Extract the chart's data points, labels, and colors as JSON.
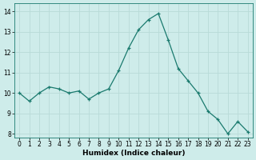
{
  "x": [
    0,
    1,
    2,
    3,
    4,
    5,
    6,
    7,
    8,
    9,
    10,
    11,
    12,
    13,
    14,
    15,
    16,
    17,
    18,
    19,
    20,
    21,
    22,
    23
  ],
  "y": [
    10.0,
    9.6,
    10.0,
    10.3,
    10.2,
    10.0,
    10.1,
    9.7,
    10.0,
    10.2,
    11.1,
    12.2,
    13.1,
    13.6,
    13.9,
    12.6,
    11.2,
    10.6,
    10.0,
    9.1,
    8.7,
    8.0,
    8.6,
    8.1
  ],
  "line_color": "#1a7a6e",
  "marker": "+",
  "bg_color": "#ceecea",
  "grid_color": "#b8dbd8",
  "xlabel": "Humidex (Indice chaleur)",
  "xlim": [
    -0.5,
    23.5
  ],
  "ylim": [
    7.8,
    14.4
  ],
  "yticks": [
    8,
    9,
    10,
    11,
    12,
    13,
    14
  ],
  "xticks": [
    0,
    1,
    2,
    3,
    4,
    5,
    6,
    7,
    8,
    9,
    10,
    11,
    12,
    13,
    14,
    15,
    16,
    17,
    18,
    19,
    20,
    21,
    22,
    23
  ],
  "label_fontsize": 6.5,
  "tick_fontsize": 5.5
}
